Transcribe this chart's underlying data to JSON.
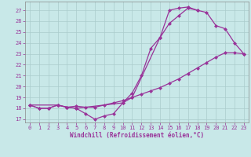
{
  "xlabel": "Windchill (Refroidissement éolien,°C)",
  "bg_color": "#c8e8e8",
  "line_color": "#993399",
  "grid_color": "#aacccc",
  "spine_color": "#888888",
  "xlim": [
    -0.5,
    23.5
  ],
  "ylim": [
    16.7,
    27.8
  ],
  "yticks": [
    17,
    18,
    19,
    20,
    21,
    22,
    23,
    24,
    25,
    26,
    27
  ],
  "xticks": [
    0,
    1,
    2,
    3,
    4,
    5,
    6,
    7,
    8,
    9,
    10,
    11,
    12,
    13,
    14,
    15,
    16,
    17,
    18,
    19,
    20,
    21,
    22,
    23
  ],
  "curve1_x": [
    0,
    1,
    2,
    3,
    4,
    5,
    6,
    7,
    8,
    9,
    10,
    11,
    12,
    13,
    14,
    15,
    16,
    17,
    18
  ],
  "curve1_y": [
    18.3,
    18.0,
    18.0,
    18.3,
    18.1,
    18.0,
    17.5,
    17.0,
    17.3,
    17.5,
    18.5,
    19.4,
    21.0,
    23.5,
    24.5,
    27.0,
    27.2,
    27.3,
    27.0
  ],
  "curve2_x": [
    0,
    1,
    2,
    3,
    4,
    5,
    6,
    7,
    8,
    9,
    10,
    11,
    12,
    13,
    14,
    15,
    16,
    17,
    18,
    19,
    20,
    21,
    22,
    23
  ],
  "curve2_y": [
    18.3,
    18.0,
    18.0,
    18.3,
    18.1,
    18.2,
    18.1,
    18.1,
    18.3,
    18.5,
    18.7,
    19.0,
    19.3,
    19.6,
    19.9,
    20.3,
    20.7,
    21.2,
    21.7,
    22.2,
    22.7,
    23.1,
    23.1,
    23.0
  ],
  "curve3_x": [
    0,
    3,
    4,
    5,
    10,
    11,
    14,
    15,
    16,
    17,
    18,
    19,
    20,
    21,
    22,
    23
  ],
  "curve3_y": [
    18.3,
    18.3,
    18.1,
    18.0,
    18.5,
    19.0,
    24.5,
    25.8,
    26.5,
    27.2,
    27.0,
    26.8,
    25.6,
    25.3,
    24.0,
    23.0
  ],
  "tick_fontsize": 5.0,
  "xlabel_fontsize": 5.5,
  "marker_size": 2.5,
  "line_width": 0.9
}
